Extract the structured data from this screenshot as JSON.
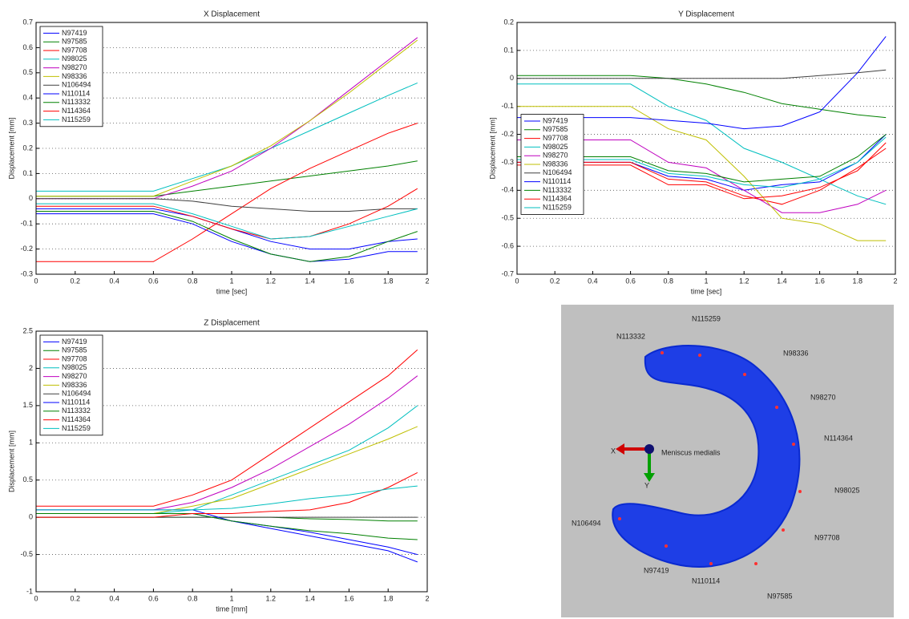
{
  "chart_data": [
    {
      "type": "line",
      "title": "X Displacement",
      "xlabel": "time [sec]",
      "ylabel": "Displacement [mm]",
      "x": [
        0,
        0.6,
        0.8,
        1.0,
        1.2,
        1.4,
        1.6,
        1.8,
        1.95
      ],
      "xlim": [
        0,
        2
      ],
      "xticks": [
        0,
        0.2,
        0.4,
        0.6,
        0.8,
        1,
        1.2,
        1.4,
        1.6,
        1.8,
        2
      ],
      "ylim": [
        -0.3,
        0.7
      ],
      "yticks": [
        -0.3,
        -0.2,
        -0.1,
        0,
        0.1,
        0.2,
        0.3,
        0.4,
        0.5,
        0.6,
        0.7
      ],
      "grid": "y",
      "legend": "upper-left",
      "series": [
        {
          "name": "N97419",
          "color": "#0000ff",
          "values": [
            -0.06,
            -0.06,
            -0.1,
            -0.17,
            -0.22,
            -0.25,
            -0.24,
            -0.21,
            -0.21
          ]
        },
        {
          "name": "N97585",
          "color": "#008000",
          "values": [
            0.01,
            0.01,
            0.03,
            0.05,
            0.07,
            0.09,
            0.11,
            0.13,
            0.15
          ]
        },
        {
          "name": "N97708",
          "color": "#ff0000",
          "values": [
            -0.25,
            -0.25,
            -0.16,
            -0.06,
            0.04,
            0.12,
            0.19,
            0.26,
            0.3
          ]
        },
        {
          "name": "N98025",
          "color": "#00bfbf",
          "values": [
            0.03,
            0.03,
            0.08,
            0.13,
            0.2,
            0.27,
            0.34,
            0.41,
            0.46
          ]
        },
        {
          "name": "N98270",
          "color": "#bf00bf",
          "values": [
            0.0,
            0.0,
            0.05,
            0.11,
            0.2,
            0.31,
            0.43,
            0.55,
            0.64
          ]
        },
        {
          "name": "N98336",
          "color": "#bfbf00",
          "values": [
            0.01,
            0.01,
            0.07,
            0.13,
            0.21,
            0.31,
            0.42,
            0.54,
            0.63
          ]
        },
        {
          "name": "N106494",
          "color": "#404040",
          "values": [
            0.0,
            0.0,
            -0.01,
            -0.03,
            -0.04,
            -0.05,
            -0.05,
            -0.04,
            -0.04
          ]
        },
        {
          "name": "N110114",
          "color": "#0000ff",
          "values": [
            -0.04,
            -0.04,
            -0.07,
            -0.12,
            -0.17,
            -0.2,
            -0.2,
            -0.17,
            -0.16
          ]
        },
        {
          "name": "N113332",
          "color": "#008000",
          "values": [
            -0.05,
            -0.05,
            -0.09,
            -0.16,
            -0.22,
            -0.25,
            -0.23,
            -0.17,
            -0.13
          ]
        },
        {
          "name": "N114364",
          "color": "#ff0000",
          "values": [
            -0.03,
            -0.03,
            -0.07,
            -0.12,
            -0.16,
            -0.15,
            -0.1,
            -0.03,
            0.04
          ]
        },
        {
          "name": "N115259",
          "color": "#00bfbf",
          "values": [
            -0.02,
            -0.02,
            -0.06,
            -0.11,
            -0.16,
            -0.15,
            -0.11,
            -0.07,
            -0.04
          ]
        }
      ]
    },
    {
      "type": "line",
      "title": "Y Displacement",
      "xlabel": "time [sec]",
      "ylabel": "Displacement [mm]",
      "x": [
        0,
        0.6,
        0.8,
        1.0,
        1.2,
        1.4,
        1.6,
        1.8,
        1.95
      ],
      "xlim": [
        0,
        2
      ],
      "xticks": [
        0,
        0.2,
        0.4,
        0.6,
        0.8,
        1,
        1.2,
        1.4,
        1.6,
        1.8,
        2
      ],
      "ylim": [
        -0.7,
        0.2
      ],
      "yticks": [
        -0.7,
        -0.6,
        -0.5,
        -0.4,
        -0.3,
        -0.2,
        -0.1,
        0,
        0.1,
        0.2
      ],
      "grid": "y",
      "legend": "center-left",
      "series": [
        {
          "name": "N97419",
          "color": "#0000ff",
          "values": [
            -0.3,
            -0.3,
            -0.35,
            -0.36,
            -0.4,
            -0.38,
            -0.37,
            -0.3,
            -0.2
          ]
        },
        {
          "name": "N97585",
          "color": "#008000",
          "values": [
            0.01,
            0.01,
            0.0,
            -0.02,
            -0.05,
            -0.09,
            -0.11,
            -0.13,
            -0.14
          ]
        },
        {
          "name": "N97708",
          "color": "#ff0000",
          "values": [
            -0.3,
            -0.3,
            -0.36,
            -0.37,
            -0.42,
            -0.45,
            -0.4,
            -0.32,
            -0.25
          ]
        },
        {
          "name": "N98025",
          "color": "#00bfbf",
          "values": [
            -0.02,
            -0.02,
            -0.1,
            -0.15,
            -0.25,
            -0.3,
            -0.36,
            -0.42,
            -0.45
          ]
        },
        {
          "name": "N98270",
          "color": "#bf00bf",
          "values": [
            -0.22,
            -0.22,
            -0.3,
            -0.32,
            -0.4,
            -0.48,
            -0.48,
            -0.45,
            -0.4
          ]
        },
        {
          "name": "N98336",
          "color": "#bfbf00",
          "values": [
            -0.1,
            -0.1,
            -0.18,
            -0.22,
            -0.35,
            -0.5,
            -0.52,
            -0.58,
            -0.58
          ]
        },
        {
          "name": "N106494",
          "color": "#404040",
          "values": [
            0,
            0,
            0,
            0,
            0,
            0,
            0.01,
            0.02,
            0.03
          ]
        },
        {
          "name": "N110114",
          "color": "#0000ff",
          "values": [
            -0.14,
            -0.14,
            -0.15,
            -0.16,
            -0.18,
            -0.17,
            -0.12,
            0.02,
            0.15
          ]
        },
        {
          "name": "N113332",
          "color": "#008000",
          "values": [
            -0.28,
            -0.28,
            -0.33,
            -0.34,
            -0.37,
            -0.36,
            -0.35,
            -0.28,
            -0.2
          ]
        },
        {
          "name": "N114364",
          "color": "#ff0000",
          "values": [
            -0.31,
            -0.31,
            -0.38,
            -0.38,
            -0.43,
            -0.42,
            -0.39,
            -0.33,
            -0.23
          ]
        },
        {
          "name": "N115259",
          "color": "#00bfbf",
          "values": [
            -0.29,
            -0.29,
            -0.34,
            -0.35,
            -0.38,
            -0.39,
            -0.36,
            -0.3,
            -0.21
          ]
        }
      ]
    },
    {
      "type": "line",
      "title": "Z Displacement",
      "xlabel": "time [mm]",
      "ylabel": "Displacement [mm]",
      "x": [
        0,
        0.6,
        0.8,
        1.0,
        1.2,
        1.4,
        1.6,
        1.8,
        1.95
      ],
      "xlim": [
        0,
        2
      ],
      "xticks": [
        0,
        0.2,
        0.4,
        0.6,
        0.8,
        1,
        1.2,
        1.4,
        1.6,
        1.8,
        2
      ],
      "ylim": [
        -1,
        2.5
      ],
      "yticks": [
        -1,
        -0.5,
        0,
        0.5,
        1,
        1.5,
        2,
        2.5
      ],
      "grid": "y",
      "legend": "upper-left",
      "series": [
        {
          "name": "N97419",
          "color": "#0000ff",
          "values": [
            0.05,
            0.05,
            0.05,
            -0.05,
            -0.15,
            -0.25,
            -0.35,
            -0.45,
            -0.6
          ]
        },
        {
          "name": "N97585",
          "color": "#008000",
          "values": [
            0,
            0,
            0,
            0,
            0,
            -0.02,
            -0.03,
            -0.05,
            -0.05
          ]
        },
        {
          "name": "N97708",
          "color": "#ff0000",
          "values": [
            0.15,
            0.15,
            0.3,
            0.5,
            0.85,
            1.2,
            1.55,
            1.9,
            2.25
          ]
        },
        {
          "name": "N98025",
          "color": "#00bfbf",
          "values": [
            0.05,
            0.05,
            0.1,
            0.3,
            0.5,
            0.7,
            0.9,
            1.2,
            1.5
          ]
        },
        {
          "name": "N98270",
          "color": "#bf00bf",
          "values": [
            0.1,
            0.1,
            0.2,
            0.4,
            0.65,
            0.95,
            1.25,
            1.6,
            1.9
          ]
        },
        {
          "name": "N98336",
          "color": "#bfbf00",
          "values": [
            0.05,
            0.05,
            0.15,
            0.25,
            0.45,
            0.65,
            0.85,
            1.05,
            1.22
          ]
        },
        {
          "name": "N106494",
          "color": "#404040",
          "values": [
            0,
            0,
            0,
            0,
            0,
            0,
            0,
            0,
            0
          ]
        },
        {
          "name": "N110114",
          "color": "#0000ff",
          "values": [
            0.1,
            0.1,
            0.1,
            -0.05,
            -0.12,
            -0.2,
            -0.3,
            -0.4,
            -0.5
          ]
        },
        {
          "name": "N113332",
          "color": "#008000",
          "values": [
            0.05,
            0.05,
            0.05,
            -0.05,
            -0.12,
            -0.18,
            -0.22,
            -0.28,
            -0.3
          ]
        },
        {
          "name": "N114364",
          "color": "#ff0000",
          "values": [
            0,
            0,
            0.05,
            0.05,
            0.08,
            0.1,
            0.2,
            0.4,
            0.6
          ]
        },
        {
          "name": "N115259",
          "color": "#00bfbf",
          "values": [
            0.1,
            0.1,
            0.1,
            0.12,
            0.18,
            0.25,
            0.3,
            0.38,
            0.42
          ]
        }
      ]
    }
  ],
  "mesh": {
    "center_label": "Meniscus medialis",
    "axis_x": "X",
    "axis_y": "Y",
    "labels": [
      "N115259",
      "N113332",
      "N98336",
      "N98270",
      "N114364",
      "N98025",
      "N97708",
      "N97585",
      "N110114",
      "N97419",
      "N106494"
    ]
  }
}
